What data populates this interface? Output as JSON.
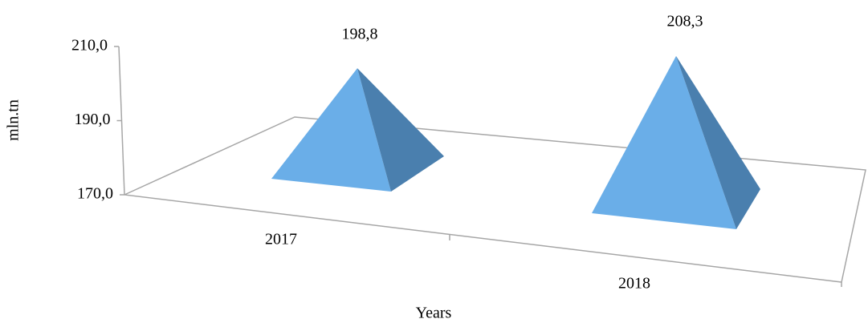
{
  "chart_data": {
    "type": "pyramid",
    "categories": [
      "2017",
      "2018"
    ],
    "values": [
      198.8,
      208.3
    ],
    "value_labels": [
      "198,8",
      "208,3"
    ],
    "ylabel": "mln.tn",
    "xlabel": "Years",
    "ylim": [
      170,
      210
    ],
    "yticks": [
      {
        "value": 170,
        "label": "170,0"
      },
      {
        "value": 190,
        "label": "190,0"
      },
      {
        "value": 210,
        "label": "210,0"
      }
    ],
    "color": "#6aaee8"
  }
}
